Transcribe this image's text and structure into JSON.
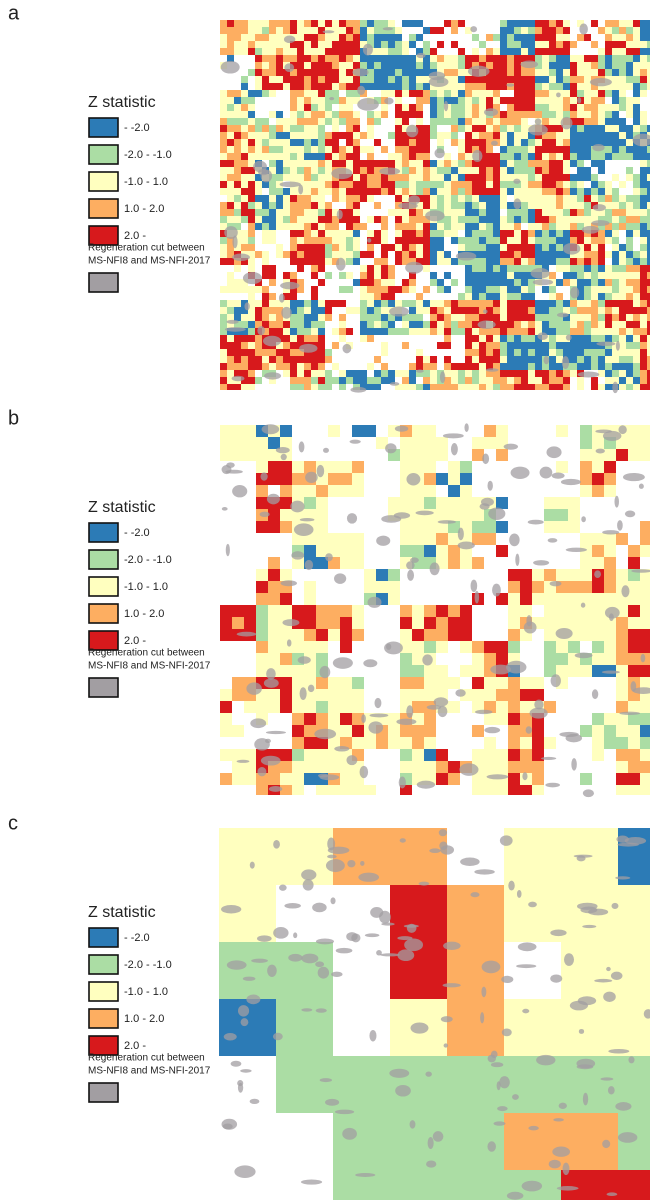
{
  "panels": [
    {
      "label": "a",
      "legend": {
        "title": "Z statistic",
        "items": [
          {
            "label": "- -2.0",
            "color": "#2c7bb6"
          },
          {
            "label": "-2.0 - -1.0",
            "color": "#abdda4"
          },
          {
            "label": "-1.0 - 1.0",
            "color": "#ffffbf"
          },
          {
            "label": "1.0 - 2.0",
            "color": "#fdae61"
          },
          {
            "label": "2.0 -",
            "color": "#d7191c"
          }
        ],
        "regeneration": {
          "lines": [
            "Regeneration cut between",
            "MS-NFI8 and MS-NFI-2017"
          ],
          "color": "#a29ea2"
        }
      }
    },
    {
      "label": "b",
      "legend": {
        "title": "Z statistic",
        "items": [
          {
            "label": "- -2.0",
            "color": "#2c7bb6"
          },
          {
            "label": "-2.0 - -1.0",
            "color": "#abdda4"
          },
          {
            "label": "-1.0 - 1.0",
            "color": "#ffffbf"
          },
          {
            "label": "1.0 - 2.0",
            "color": "#fdae61"
          },
          {
            "label": "2.0 -",
            "color": "#d7191c"
          }
        ],
        "regeneration": {
          "lines": [
            "Regeneration cut between",
            "MS-NFI8 and MS-NFI-2017"
          ],
          "color": "#a29ea2"
        }
      }
    },
    {
      "label": "c",
      "legend": {
        "title": "Z statistic",
        "items": [
          {
            "label": "- -2.0",
            "color": "#2c7bb6"
          },
          {
            "label": "-2.0 - -1.0",
            "color": "#abdda4"
          },
          {
            "label": "-1.0 - 1.0",
            "color": "#ffffbf"
          },
          {
            "label": "1.0 - 2.0",
            "color": "#fdae61"
          },
          {
            "label": "2.0 -",
            "color": "#d7191c"
          }
        ],
        "regeneration": {
          "lines": [
            "Regeneration cut between",
            "MS-NFI8 and MS-NFI-2017"
          ],
          "color": "#a29ea2"
        }
      }
    }
  ]
}
